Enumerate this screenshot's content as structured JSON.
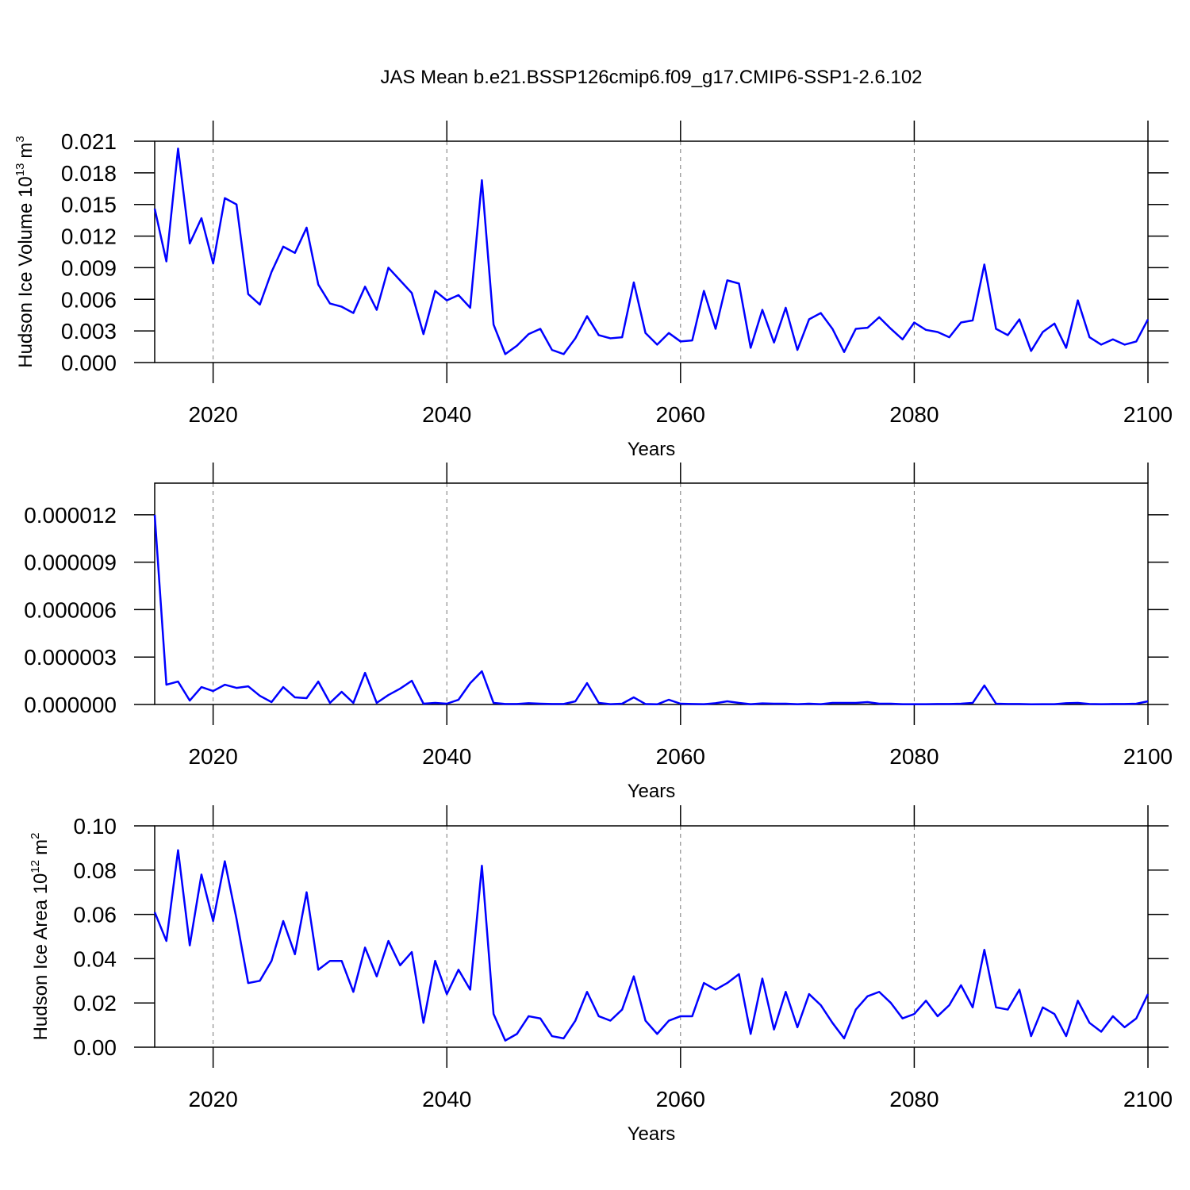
{
  "chart_data": [
    {
      "type": "line",
      "title": "JAS Mean b.e21.BSSP126cmip6.f09_g17.CMIP6-SSP1-2.6.102",
      "ylabel": [
        "Hudson Ice Volume 10",
        "13",
        "m",
        "3"
      ],
      "xlabel": "Years",
      "xlim": [
        2015,
        2100
      ],
      "xticks": [
        2020,
        2040,
        2060,
        2080,
        2100
      ],
      "ylim": [
        0,
        0.021
      ],
      "yticks": [
        {
          "value": 0,
          "label": "0.000"
        },
        {
          "value": 0.003,
          "label": "0.003"
        },
        {
          "value": 0.006,
          "label": "0.006"
        },
        {
          "value": 0.009,
          "label": "0.009"
        },
        {
          "value": 0.012,
          "label": "0.012"
        },
        {
          "value": 0.015,
          "label": "0.015"
        },
        {
          "value": 0.018,
          "label": "0.018"
        },
        {
          "value": 0.021,
          "label": "0.021"
        }
      ],
      "grid": "x",
      "color": "#0000ff",
      "x": [
        2015,
        2016,
        2017,
        2018,
        2019,
        2020,
        2021,
        2022,
        2023,
        2024,
        2025,
        2026,
        2027,
        2028,
        2029,
        2030,
        2031,
        2032,
        2033,
        2034,
        2035,
        2036,
        2037,
        2038,
        2039,
        2040,
        2041,
        2042,
        2043,
        2044,
        2045,
        2046,
        2047,
        2048,
        2049,
        2050,
        2051,
        2052,
        2053,
        2054,
        2055,
        2056,
        2057,
        2058,
        2059,
        2060,
        2061,
        2062,
        2063,
        2064,
        2065,
        2066,
        2067,
        2068,
        2069,
        2070,
        2071,
        2072,
        2073,
        2074,
        2075,
        2076,
        2077,
        2078,
        2079,
        2080,
        2081,
        2082,
        2083,
        2084,
        2085,
        2086,
        2087,
        2088,
        2089,
        2090,
        2091,
        2092,
        2093,
        2094,
        2095,
        2096,
        2097,
        2098,
        2099,
        2100
      ],
      "values": [
        0.0146,
        0.0096,
        0.0203,
        0.0113,
        0.0137,
        0.0094,
        0.0156,
        0.015,
        0.0065,
        0.0055,
        0.0086,
        0.011,
        0.0104,
        0.0128,
        0.0074,
        0.0056,
        0.0053,
        0.0047,
        0.0072,
        0.005,
        0.009,
        0.0078,
        0.0066,
        0.0027,
        0.0068,
        0.0059,
        0.0064,
        0.0052,
        0.0173,
        0.0036,
        0.0008,
        0.0016,
        0.0027,
        0.0032,
        0.0012,
        0.0008,
        0.0023,
        0.0044,
        0.0026,
        0.0023,
        0.0024,
        0.0076,
        0.0028,
        0.0017,
        0.0028,
        0.002,
        0.0021,
        0.0068,
        0.0032,
        0.0078,
        0.0075,
        0.0014,
        0.005,
        0.0019,
        0.0052,
        0.0012,
        0.0041,
        0.0047,
        0.0032,
        0.001,
        0.0032,
        0.0033,
        0.0043,
        0.0032,
        0.0022,
        0.0038,
        0.0031,
        0.0029,
        0.0024,
        0.0038,
        0.004,
        0.0093,
        0.0032,
        0.0026,
        0.0041,
        0.0011,
        0.0029,
        0.0037,
        0.0014,
        0.0059,
        0.0024,
        0.0017,
        0.0022,
        0.0017,
        0.002,
        0.0041
      ]
    },
    {
      "type": "line",
      "xlabel": "Years",
      "xlim": [
        2015,
        2100
      ],
      "xticks": [
        2020,
        2040,
        2060,
        2080,
        2100
      ],
      "ylim": [
        0,
        1.4e-05
      ],
      "yticks": [
        {
          "value": 0,
          "label": "0.000000"
        },
        {
          "value": 3e-06,
          "label": "0.000003"
        },
        {
          "value": 6e-06,
          "label": "0.000006"
        },
        {
          "value": 9e-06,
          "label": "0.000009"
        },
        {
          "value": 1.2e-05,
          "label": "0.000012"
        }
      ],
      "grid": "x",
      "color": "#0000ff",
      "x": [
        2015,
        2016,
        2017,
        2018,
        2019,
        2020,
        2021,
        2022,
        2023,
        2024,
        2025,
        2026,
        2027,
        2028,
        2029,
        2030,
        2031,
        2032,
        2033,
        2034,
        2035,
        2036,
        2037,
        2038,
        2039,
        2040,
        2041,
        2042,
        2043,
        2044,
        2045,
        2046,
        2047,
        2048,
        2049,
        2050,
        2051,
        2052,
        2053,
        2054,
        2055,
        2056,
        2057,
        2058,
        2059,
        2060,
        2061,
        2062,
        2063,
        2064,
        2065,
        2066,
        2067,
        2068,
        2069,
        2070,
        2071,
        2072,
        2073,
        2074,
        2075,
        2076,
        2077,
        2078,
        2079,
        2080,
        2081,
        2082,
        2083,
        2084,
        2085,
        2086,
        2087,
        2088,
        2089,
        2090,
        2091,
        2092,
        2093,
        2094,
        2095,
        2096,
        2097,
        2098,
        2099,
        2100
      ],
      "values": [
        1.2e-05,
        1.25e-06,
        1.45e-06,
        2.5e-07,
        1.1e-06,
        8.5e-07,
        1.25e-06,
        1.05e-06,
        1.15e-06,
        5.5e-07,
        1.5e-07,
        1.1e-06,
        4.5e-07,
        4e-07,
        1.45e-06,
        1e-07,
        8e-07,
        1e-07,
        2e-06,
        1e-07,
        6e-07,
        1e-06,
        1.5e-06,
        5e-08,
        1e-07,
        5e-08,
        3e-07,
        1.35e-06,
        2.1e-06,
        1e-07,
        3e-08,
        3e-08,
        8e-08,
        5e-08,
        3e-08,
        3e-08,
        2e-07,
        1.35e-06,
        1e-07,
        2e-08,
        5e-08,
        4.5e-07,
        3e-08,
        1e-08,
        3e-07,
        5e-08,
        3e-08,
        2e-08,
        8e-08,
        2e-07,
        1e-07,
        2e-08,
        7e-08,
        5e-08,
        5e-08,
        2e-08,
        5e-08,
        2e-08,
        1e-07,
        1e-07,
        1e-07,
        1.5e-07,
        5e-08,
        5e-08,
        2e-08,
        2e-08,
        2e-08,
        3e-08,
        3e-08,
        5e-08,
        1e-07,
        1.2e-06,
        5e-08,
        3e-08,
        3e-08,
        1e-08,
        2e-08,
        2e-08,
        8e-08,
        1e-07,
        3e-08,
        2e-08,
        3e-08,
        3e-08,
        5e-08,
        2e-07
      ]
    },
    {
      "type": "line",
      "ylabel": [
        "Hudson Ice Area 10",
        "12",
        "m",
        "2"
      ],
      "xlabel": "Years",
      "xlim": [
        2015,
        2100
      ],
      "xticks": [
        2020,
        2040,
        2060,
        2080,
        2100
      ],
      "ylim": [
        0,
        0.1
      ],
      "yticks": [
        {
          "value": 0,
          "label": "0.00"
        },
        {
          "value": 0.02,
          "label": "0.02"
        },
        {
          "value": 0.04,
          "label": "0.04"
        },
        {
          "value": 0.06,
          "label": "0.06"
        },
        {
          "value": 0.08,
          "label": "0.08"
        },
        {
          "value": 0.1,
          "label": "0.10"
        }
      ],
      "grid": "x",
      "color": "#0000ff",
      "x": [
        2015,
        2016,
        2017,
        2018,
        2019,
        2020,
        2021,
        2022,
        2023,
        2024,
        2025,
        2026,
        2027,
        2028,
        2029,
        2030,
        2031,
        2032,
        2033,
        2034,
        2035,
        2036,
        2037,
        2038,
        2039,
        2040,
        2041,
        2042,
        2043,
        2044,
        2045,
        2046,
        2047,
        2048,
        2049,
        2050,
        2051,
        2052,
        2053,
        2054,
        2055,
        2056,
        2057,
        2058,
        2059,
        2060,
        2061,
        2062,
        2063,
        2064,
        2065,
        2066,
        2067,
        2068,
        2069,
        2070,
        2071,
        2072,
        2073,
        2074,
        2075,
        2076,
        2077,
        2078,
        2079,
        2080,
        2081,
        2082,
        2083,
        2084,
        2085,
        2086,
        2087,
        2088,
        2089,
        2090,
        2091,
        2092,
        2093,
        2094,
        2095,
        2096,
        2097,
        2098,
        2099,
        2100
      ],
      "values": [
        0.061,
        0.048,
        0.089,
        0.046,
        0.078,
        0.057,
        0.084,
        0.058,
        0.029,
        0.03,
        0.039,
        0.057,
        0.042,
        0.07,
        0.035,
        0.039,
        0.039,
        0.025,
        0.045,
        0.032,
        0.048,
        0.037,
        0.043,
        0.011,
        0.039,
        0.024,
        0.035,
        0.026,
        0.082,
        0.015,
        0.003,
        0.006,
        0.014,
        0.013,
        0.005,
        0.004,
        0.012,
        0.025,
        0.014,
        0.012,
        0.017,
        0.032,
        0.012,
        0.006,
        0.012,
        0.014,
        0.014,
        0.029,
        0.026,
        0.029,
        0.033,
        0.006,
        0.031,
        0.008,
        0.025,
        0.009,
        0.024,
        0.019,
        0.011,
        0.004,
        0.017,
        0.023,
        0.025,
        0.02,
        0.013,
        0.015,
        0.021,
        0.014,
        0.019,
        0.028,
        0.018,
        0.044,
        0.018,
        0.017,
        0.026,
        0.005,
        0.018,
        0.015,
        0.005,
        0.021,
        0.011,
        0.007,
        0.014,
        0.009,
        0.013,
        0.024
      ]
    }
  ]
}
